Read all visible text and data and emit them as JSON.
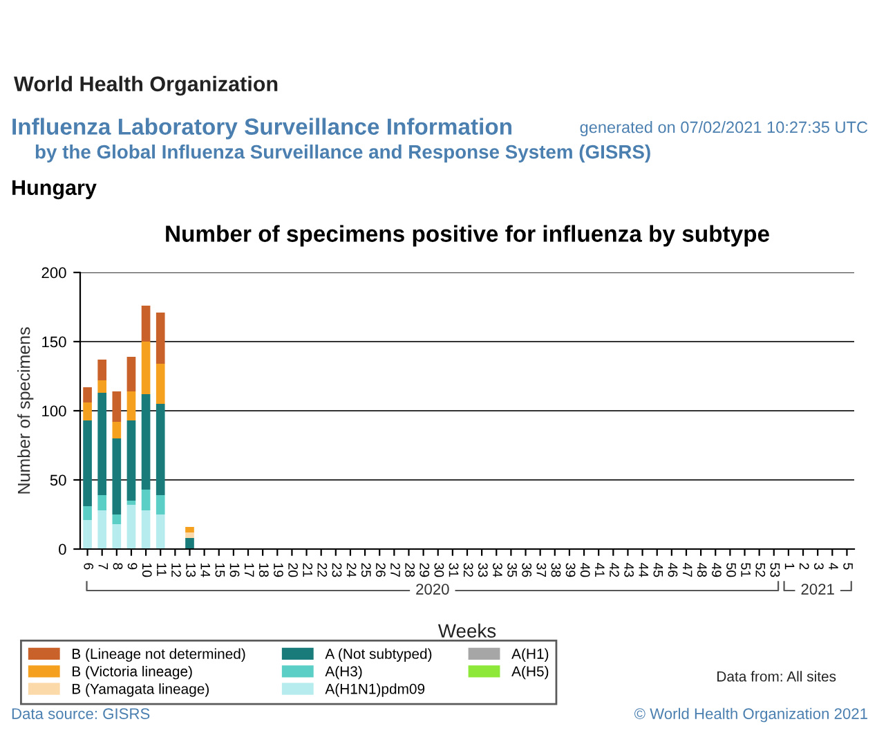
{
  "chart_data": {
    "type": "bar",
    "stacked": true,
    "title": "Number of specimens positive for influenza by subtype",
    "subtitle": "Hungary",
    "xlabel": "Weeks",
    "ylabel": "Number of specimens",
    "annotations": [
      "World Health Organization",
      "Influenza Laboratory Surveillance Information",
      "by the Global Influenza Surveillance and Response System (GISRS)",
      "generated on 07/02/2021 10:27:35 UTC",
      "Data from: All sites",
      "Data source: GISRS",
      "© World Health Organization 2021",
      "2020",
      "2021"
    ],
    "categories": [
      "6",
      "7",
      "8",
      "9",
      "10",
      "11",
      "12",
      "13",
      "14",
      "15",
      "16",
      "17",
      "18",
      "19",
      "20",
      "21",
      "22",
      "23",
      "24",
      "25",
      "26",
      "27",
      "28",
      "29",
      "30",
      "31",
      "32",
      "33",
      "34",
      "35",
      "36",
      "37",
      "38",
      "39",
      "40",
      "41",
      "42",
      "43",
      "44",
      "45",
      "46",
      "47",
      "48",
      "49",
      "50",
      "51",
      "52",
      "53",
      "1",
      "2",
      "3",
      "4",
      "5"
    ],
    "series": [
      {
        "name": "A(H5)",
        "color": "#8de83a",
        "values": [
          0,
          0,
          0,
          0,
          0,
          0,
          0,
          0,
          0,
          0,
          0,
          0,
          0,
          0,
          0,
          0,
          0,
          0,
          0,
          0,
          0,
          0,
          0,
          0,
          0,
          0,
          0,
          0,
          0,
          0,
          0,
          0,
          0,
          0,
          0,
          0,
          0,
          0,
          0,
          0,
          0,
          0,
          0,
          0,
          0,
          0,
          0,
          0,
          0,
          0,
          0,
          0,
          0
        ]
      },
      {
        "name": "A(H1)",
        "color": "#a6a6a6",
        "values": [
          0,
          0,
          0,
          0,
          0,
          0,
          0,
          0,
          0,
          0,
          0,
          0,
          0,
          0,
          0,
          0,
          0,
          0,
          0,
          0,
          0,
          0,
          0,
          0,
          0,
          0,
          0,
          0,
          0,
          0,
          0,
          0,
          0,
          0,
          0,
          0,
          0,
          0,
          0,
          0,
          0,
          0,
          0,
          0,
          0,
          0,
          0,
          0,
          0,
          0,
          0,
          0,
          0
        ]
      },
      {
        "name": "A(H1N1)pdm09",
        "color": "#b7ecee",
        "values": [
          21,
          28,
          18,
          32,
          28,
          25,
          0,
          0,
          0,
          0,
          0,
          0,
          0,
          0,
          0,
          0,
          0,
          0,
          0,
          0,
          0,
          0,
          0,
          0,
          0,
          0,
          0,
          0,
          0,
          0,
          0,
          0,
          0,
          0,
          0,
          0,
          0,
          0,
          0,
          0,
          0,
          0,
          0,
          0,
          0,
          0,
          0,
          0,
          0,
          0,
          0,
          0,
          0
        ]
      },
      {
        "name": "A(H3)",
        "color": "#5bcfc6",
        "values": [
          10,
          11,
          7,
          3,
          15,
          14,
          0,
          0,
          0,
          0,
          0,
          0,
          0,
          0,
          0,
          0,
          0,
          0,
          0,
          0,
          0,
          0,
          0,
          0,
          0,
          0,
          0,
          0,
          0,
          0,
          0,
          0,
          0,
          0,
          0,
          0,
          0,
          0,
          0,
          0,
          0,
          0,
          0,
          0,
          0,
          0,
          0,
          0,
          0,
          0,
          0,
          0,
          0
        ]
      },
      {
        "name": "A (Not subtyped)",
        "color": "#1a7b7b",
        "values": [
          62,
          74,
          55,
          58,
          69,
          66,
          0,
          8,
          0,
          0,
          0,
          0,
          0,
          0,
          0,
          0,
          0,
          0,
          0,
          0,
          0,
          0,
          0,
          0,
          0,
          0,
          0,
          0,
          0,
          0,
          0,
          0,
          0,
          0,
          0,
          0,
          0,
          0,
          0,
          0,
          0,
          0,
          0,
          0,
          0,
          0,
          0,
          0,
          0,
          0,
          0,
          0,
          0
        ]
      },
      {
        "name": "B (Yamagata lineage)",
        "color": "#fcd9a8",
        "values": [
          0,
          0,
          0,
          0,
          0,
          0,
          0,
          4,
          0,
          0,
          0,
          0,
          0,
          0,
          0,
          0,
          0,
          0,
          0,
          0,
          0,
          0,
          0,
          0,
          0,
          0,
          0,
          0,
          0,
          0,
          0,
          0,
          0,
          0,
          0,
          0,
          0,
          0,
          0,
          0,
          0,
          0,
          0,
          0,
          0,
          0,
          0,
          0,
          0,
          0,
          0,
          0,
          0
        ]
      },
      {
        "name": "B (Victoria lineage)",
        "color": "#f5a11f",
        "values": [
          13,
          9,
          12,
          21,
          38,
          29,
          0,
          4,
          0,
          0,
          0,
          0,
          0,
          0,
          0,
          0,
          0,
          0,
          0,
          0,
          0,
          0,
          0,
          0,
          0,
          0,
          0,
          0,
          0,
          0,
          0,
          0,
          0,
          0,
          0,
          0,
          0,
          0,
          0,
          0,
          0,
          0,
          0,
          0,
          0,
          0,
          0,
          0,
          0,
          0,
          0,
          0,
          0
        ]
      },
      {
        "name": "B (Lineage not determined)",
        "color": "#c8612a",
        "values": [
          11,
          15,
          22,
          25,
          26,
          37,
          0,
          0,
          0,
          0,
          0,
          0,
          0,
          0,
          0,
          0,
          0,
          0,
          0,
          0,
          0,
          0,
          0,
          0,
          0,
          0,
          0,
          0,
          0,
          0,
          0,
          0,
          0,
          0,
          0,
          0,
          0,
          0,
          0,
          0,
          0,
          0,
          0,
          0,
          0,
          0,
          0,
          0,
          0,
          0,
          0,
          0,
          0
        ]
      }
    ],
    "ylim": [
      0,
      200
    ],
    "yticks": [
      0,
      50,
      100,
      150,
      200
    ],
    "grid": "y",
    "legend": "bottom left"
  }
}
